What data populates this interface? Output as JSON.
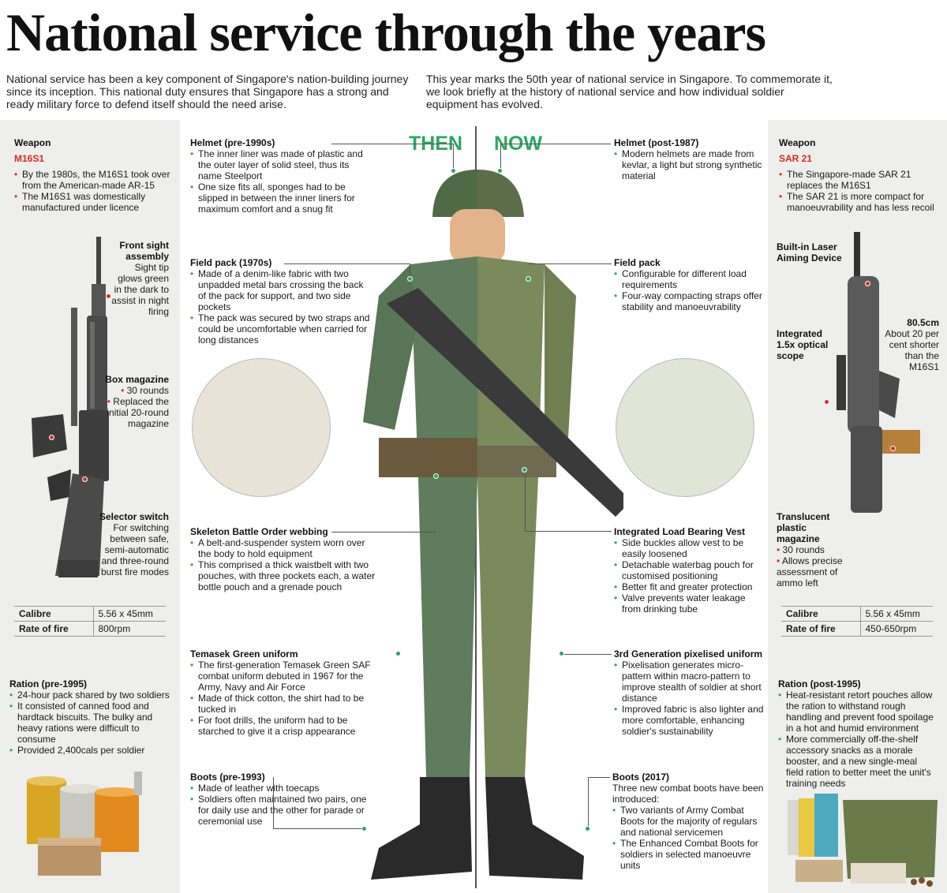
{
  "title": "National service through the years",
  "intro": {
    "left": "National service has been a key component of Singapore's nation-building journey since its inception. This national duty ensures that Singapore has a strong and ready military force to defend itself should the need arise.",
    "right": "This year marks the 50th year of national service in Singapore. To commemorate it, we look briefly at the history of national service and how individual soldier equipment has evolved."
  },
  "labels": {
    "then": "THEN",
    "now": "NOW"
  },
  "colors": {
    "accent_green": "#27a85b",
    "accent_red": "#d62c1f",
    "panel_grey": "#eeeeec"
  },
  "left_weapon": {
    "heading": "Weapon",
    "name": "M16S1",
    "points": [
      "By the 1980s, the M16S1 took over from the American-made AR-15",
      "The M16S1 was domestically manufactured under licence"
    ],
    "front_sight": {
      "title": "Front sight assembly",
      "text": "Sight tip glows green in the dark to assist in night firing"
    },
    "box_magazine": {
      "title": "Box magazine",
      "points": [
        "30 rounds",
        "Replaced the initial 20-round magazine"
      ]
    },
    "selector": {
      "title": "Selector switch",
      "text": "For switching between safe, semi-automatic and three-round burst fire modes"
    },
    "specs": [
      {
        "key": "Calibre",
        "value": "5.56 x 45mm"
      },
      {
        "key": "Rate of fire",
        "value": "800rpm"
      }
    ]
  },
  "right_weapon": {
    "heading": "Weapon",
    "name": "SAR 21",
    "points": [
      "The Singapore-made SAR 21 replaces the M16S1",
      "The SAR 21 is more compact for manoeuvrability and has less recoil"
    ],
    "laser": {
      "title": "Built-in Laser Aiming Device"
    },
    "scope": {
      "title": "Integrated 1.5x optical scope"
    },
    "length": {
      "title": "80.5cm",
      "text": "About 20 per cent shorter than the M16S1"
    },
    "magazine": {
      "title": "Translucent plastic magazine",
      "points": [
        "30 rounds",
        "Allows precise assessment of ammo left"
      ]
    },
    "specs": [
      {
        "key": "Calibre",
        "value": "5.56 x 45mm"
      },
      {
        "key": "Rate of fire",
        "value": "450-650rpm"
      }
    ]
  },
  "ration_then": {
    "title": "Ration (pre-1995)",
    "points": [
      "24-hour pack shared by two soldiers",
      "It consisted of canned food and hardtack biscuits. The bulky and heavy rations were difficult to consume",
      "Provided 2,400cals per soldier"
    ]
  },
  "ration_now": {
    "title": "Ration (post-1995)",
    "points": [
      "Heat-resistant retort pouches allow the ration to withstand rough handling and prevent food spoilage in a hot and humid environment",
      "More commercially off-the-shelf accessory snacks as a morale booster, and a new single-meal field ration to better meet the unit's training needs"
    ]
  },
  "then": {
    "helmet": {
      "title": "Helmet (pre-1990s)",
      "points": [
        "The inner liner was made of plastic and the outer layer of solid steel, thus its name Steelport",
        "One size fits all, sponges had to be slipped in between the inner liners for maximum comfort and a snug fit"
      ]
    },
    "field_pack": {
      "title": "Field pack (1970s)",
      "points": [
        "Made of a denim-like fabric with two unpadded metal bars crossing the back of the pack for support, and two side pockets",
        "The pack was secured by two straps and could be uncomfortable when carried for long distances"
      ]
    },
    "webbing": {
      "title": "Skeleton Battle Order webbing",
      "points": [
        "A belt-and-suspender system worn over the body to hold equipment",
        "This comprised a thick waistbelt with two pouches, with three pockets each, a water bottle pouch and a grenade pouch"
      ]
    },
    "uniform": {
      "title": "Temasek Green uniform",
      "points": [
        "The first-generation Temasek Green SAF combat uniform debuted in 1967 for the Army, Navy and Air Force",
        "Made of thick cotton, the shirt had to be tucked in",
        "For foot drills, the uniform had to be starched to give it a crisp appearance"
      ]
    },
    "boots": {
      "title": "Boots (pre-1993)",
      "points": [
        "Made of leather with toecaps",
        "Soldiers often maintained two pairs, one for daily use and the other for parade or ceremonial use"
      ]
    }
  },
  "now": {
    "helmet": {
      "title": "Helmet (post-1987)",
      "points": [
        "Modern helmets are made from kevlar, a light but strong synthetic material"
      ]
    },
    "field_pack": {
      "title": "Field pack",
      "points": [
        "Configurable for different load requirements",
        "Four-way compacting straps offer stability and manoeuvrability"
      ]
    },
    "vest": {
      "title": "Integrated Load Bearing Vest",
      "points": [
        "Side buckles allow vest to be easily loosened",
        "Detachable waterbag pouch for customised positioning",
        "Better fit and greater protection",
        "Valve prevents water leakage from drinking tube"
      ]
    },
    "uniform": {
      "title": "3rd Generation pixelised uniform",
      "points": [
        "Pixelisation generates micro-pattern within macro-pattern to improve stealth of soldier at short distance",
        "Improved fabric is also lighter and more comfortable, enhancing soldier's sustainability"
      ]
    },
    "boots": {
      "title": "Boots (2017)",
      "intro": "Three new combat boots have been introduced:",
      "points": [
        "Two variants of Army Combat Boots for the majority of regulars and national servicemen",
        "The Enhanced Combat Boots for soldiers in selected manoeuvre units"
      ]
    }
  }
}
